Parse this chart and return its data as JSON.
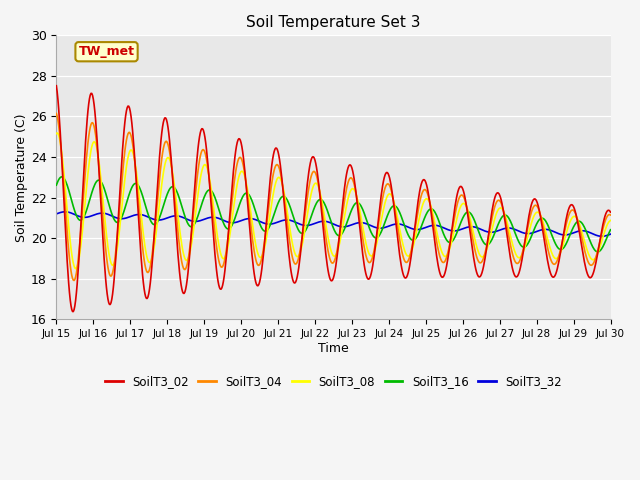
{
  "title": "Soil Temperature Set 3",
  "xlabel": "Time",
  "ylabel": "Soil Temperature (C)",
  "ylim": [
    16,
    30
  ],
  "ytick_values": [
    16,
    18,
    20,
    22,
    24,
    26,
    28,
    30
  ],
  "colors": {
    "SoilT3_02": "#dd0000",
    "SoilT3_04": "#ff8800",
    "SoilT3_08": "#ffff00",
    "SoilT3_16": "#00bb00",
    "SoilT3_32": "#0000dd"
  },
  "annotation_text": "TW_met",
  "bg_color": "#e8e8e8",
  "line_width": 1.2
}
